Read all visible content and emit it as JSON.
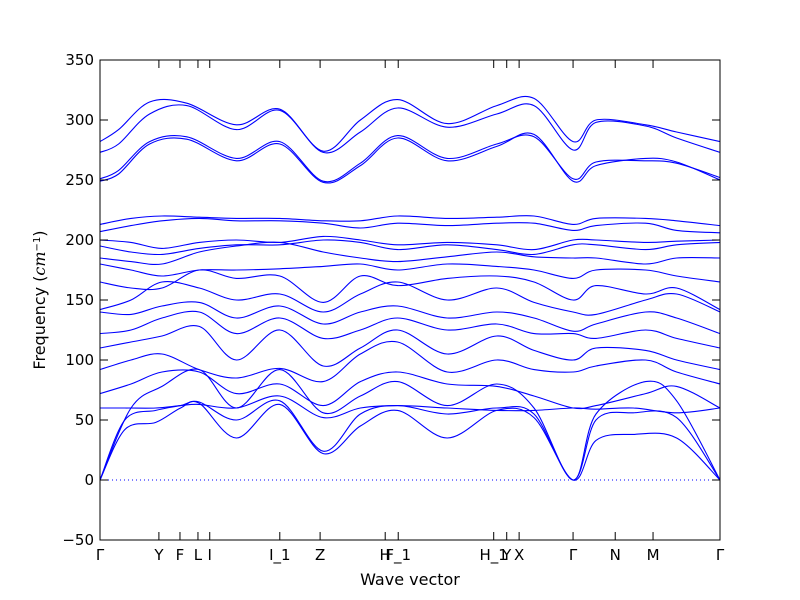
{
  "chart_data": {
    "type": "line",
    "xlabel": "Wave vector",
    "ylabel_main": "Frequency (",
    "ylabel_unit": "cm",
    "ylabel_exp": "−1",
    "ylabel_close": ")",
    "ylim": [
      -50,
      350
    ],
    "yticks": [
      -50,
      0,
      50,
      100,
      150,
      200,
      250,
      300,
      350
    ],
    "xlim": [
      0,
      1
    ],
    "high_symmetry_points": [
      {
        "label": "Γ",
        "x": 0.0
      },
      {
        "label": "Y",
        "x": 0.095
      },
      {
        "label": "F",
        "x": 0.129
      },
      {
        "label": "L",
        "x": 0.158
      },
      {
        "label": "I",
        "x": 0.177
      },
      {
        "label": "I_1",
        "x": 0.29
      },
      {
        "label": "Z",
        "x": 0.355
      },
      {
        "label": "H",
        "x": 0.46
      },
      {
        "label": "F_1",
        "x": 0.481
      },
      {
        "label": "H_1",
        "x": 0.635
      },
      {
        "label": "Y",
        "x": 0.656
      },
      {
        "label": "X",
        "x": 0.676
      },
      {
        "label": "Γ",
        "x": 0.763
      },
      {
        "label": "N",
        "x": 0.831
      },
      {
        "label": "M",
        "x": 0.892
      },
      {
        "label": "Γ",
        "x": 1.0
      }
    ],
    "zero_line": 0,
    "band_color": "#0000ff",
    "zero_line_color": "#0000ff",
    "series": [
      {
        "x": [
          0,
          0.04,
          0.09,
          0.13,
          0.16,
          0.22,
          0.29,
          0.36,
          0.42,
          0.48,
          0.56,
          0.64,
          0.7,
          0.763,
          0.8,
          0.86,
          0.93,
          1.0
        ],
        "y": [
          0,
          42,
          48,
          60,
          64,
          35,
          63,
          22,
          45,
          58,
          35,
          58,
          52,
          0,
          33,
          38,
          35,
          0
        ]
      },
      {
        "x": [
          0,
          0.04,
          0.09,
          0.13,
          0.16,
          0.22,
          0.29,
          0.36,
          0.42,
          0.48,
          0.56,
          0.64,
          0.7,
          0.763,
          0.8,
          0.86,
          0.93,
          1.0
        ],
        "y": [
          0,
          50,
          58,
          62,
          65,
          50,
          66,
          24,
          55,
          62,
          55,
          60,
          55,
          0,
          50,
          56,
          52,
          0
        ]
      },
      {
        "x": [
          0,
          0.04,
          0.09,
          0.13,
          0.16,
          0.22,
          0.29,
          0.36,
          0.42,
          0.48,
          0.56,
          0.64,
          0.7,
          0.763,
          0.8,
          0.86,
          0.93,
          1.0
        ],
        "y": [
          60,
          60,
          60,
          62,
          63,
          60,
          70,
          52,
          60,
          62,
          60,
          58,
          58,
          60,
          59,
          60,
          56,
          60
        ]
      },
      {
        "x": [
          0,
          0.05,
          0.1,
          0.16,
          0.22,
          0.29,
          0.36,
          0.42,
          0.48,
          0.56,
          0.64,
          0.7,
          0.763,
          0.8,
          0.88,
          0.93,
          1.0
        ],
        "y": [
          0,
          60,
          78,
          92,
          60,
          92,
          56,
          70,
          82,
          62,
          80,
          60,
          0,
          55,
          82,
          66,
          0
        ]
      },
      {
        "x": [
          0,
          0.05,
          0.1,
          0.16,
          0.22,
          0.29,
          0.36,
          0.42,
          0.48,
          0.56,
          0.64,
          0.7,
          0.763,
          0.8,
          0.88,
          0.93,
          1.0
        ],
        "y": [
          72,
          80,
          90,
          90,
          72,
          80,
          62,
          82,
          90,
          80,
          78,
          70,
          60,
          62,
          72,
          78,
          60
        ]
      },
      {
        "x": [
          0,
          0.05,
          0.1,
          0.16,
          0.22,
          0.29,
          0.36,
          0.42,
          0.48,
          0.56,
          0.64,
          0.7,
          0.763,
          0.8,
          0.88,
          0.93,
          1.0
        ],
        "y": [
          92,
          100,
          105,
          92,
          85,
          93,
          82,
          105,
          115,
          90,
          100,
          92,
          90,
          95,
          100,
          90,
          80
        ]
      },
      {
        "x": [
          0,
          0.05,
          0.1,
          0.16,
          0.22,
          0.29,
          0.36,
          0.42,
          0.48,
          0.56,
          0.64,
          0.7,
          0.763,
          0.8,
          0.88,
          0.93,
          1.0
        ],
        "y": [
          110,
          115,
          120,
          128,
          100,
          125,
          95,
          110,
          125,
          105,
          120,
          108,
          100,
          110,
          108,
          100,
          92
        ]
      },
      {
        "x": [
          0,
          0.05,
          0.1,
          0.16,
          0.22,
          0.29,
          0.36,
          0.42,
          0.48,
          0.56,
          0.64,
          0.7,
          0.763,
          0.8,
          0.88,
          0.93,
          1.0
        ],
        "y": [
          122,
          125,
          135,
          140,
          122,
          135,
          118,
          125,
          135,
          125,
          130,
          122,
          122,
          118,
          125,
          118,
          110
        ]
      },
      {
        "x": [
          0,
          0.05,
          0.1,
          0.16,
          0.22,
          0.29,
          0.36,
          0.42,
          0.48,
          0.56,
          0.64,
          0.7,
          0.763,
          0.8,
          0.88,
          0.93,
          1.0
        ],
        "y": [
          140,
          138,
          145,
          148,
          135,
          145,
          130,
          140,
          145,
          135,
          140,
          135,
          124,
          130,
          140,
          135,
          122
        ]
      },
      {
        "x": [
          0,
          0.05,
          0.1,
          0.16,
          0.22,
          0.29,
          0.36,
          0.42,
          0.48,
          0.56,
          0.64,
          0.7,
          0.763,
          0.8,
          0.88,
          0.93,
          1.0
        ],
        "y": [
          142,
          150,
          165,
          160,
          150,
          155,
          140,
          155,
          165,
          150,
          160,
          148,
          140,
          138,
          150,
          155,
          140
        ]
      },
      {
        "x": [
          0,
          0.05,
          0.1,
          0.16,
          0.22,
          0.29,
          0.36,
          0.42,
          0.48,
          0.56,
          0.64,
          0.7,
          0.763,
          0.8,
          0.88,
          0.93,
          1.0
        ],
        "y": [
          165,
          160,
          160,
          175,
          168,
          170,
          148,
          170,
          162,
          168,
          170,
          165,
          150,
          162,
          155,
          160,
          142
        ]
      },
      {
        "x": [
          0,
          0.05,
          0.1,
          0.16,
          0.22,
          0.29,
          0.36,
          0.42,
          0.48,
          0.56,
          0.64,
          0.7,
          0.763,
          0.8,
          0.88,
          0.93,
          1.0
        ],
        "y": [
          180,
          175,
          170,
          175,
          175,
          176,
          178,
          180,
          175,
          180,
          178,
          175,
          168,
          175,
          175,
          170,
          165
        ]
      },
      {
        "x": [
          0,
          0.05,
          0.1,
          0.16,
          0.22,
          0.29,
          0.36,
          0.42,
          0.48,
          0.56,
          0.64,
          0.7,
          0.763,
          0.8,
          0.88,
          0.93,
          1.0
        ],
        "y": [
          185,
          182,
          180,
          190,
          195,
          198,
          190,
          185,
          182,
          186,
          190,
          186,
          185,
          185,
          180,
          185,
          185
        ]
      },
      {
        "x": [
          0,
          0.05,
          0.1,
          0.16,
          0.22,
          0.29,
          0.36,
          0.42,
          0.48,
          0.56,
          0.64,
          0.7,
          0.763,
          0.8,
          0.88,
          0.93,
          1.0
        ],
        "y": [
          195,
          190,
          188,
          193,
          196,
          196,
          200,
          198,
          192,
          196,
          192,
          188,
          196,
          196,
          192,
          196,
          198
        ]
      },
      {
        "x": [
          0,
          0.05,
          0.1,
          0.16,
          0.22,
          0.29,
          0.36,
          0.42,
          0.48,
          0.56,
          0.64,
          0.7,
          0.763,
          0.8,
          0.88,
          0.93,
          1.0
        ],
        "y": [
          200,
          198,
          193,
          198,
          200,
          198,
          203,
          200,
          196,
          198,
          196,
          192,
          200,
          200,
          198,
          199,
          200
        ]
      },
      {
        "x": [
          0,
          0.05,
          0.1,
          0.16,
          0.22,
          0.29,
          0.36,
          0.42,
          0.48,
          0.56,
          0.64,
          0.7,
          0.763,
          0.8,
          0.88,
          0.93,
          1.0
        ],
        "y": [
          207,
          212,
          216,
          218,
          216,
          216,
          214,
          210,
          214,
          212,
          214,
          214,
          208,
          212,
          214,
          208,
          206
        ]
      },
      {
        "x": [
          0,
          0.05,
          0.1,
          0.16,
          0.22,
          0.29,
          0.36,
          0.42,
          0.48,
          0.56,
          0.64,
          0.7,
          0.763,
          0.8,
          0.88,
          0.93,
          1.0
        ],
        "y": [
          213,
          218,
          220,
          219,
          218,
          218,
          216,
          216,
          220,
          218,
          219,
          220,
          213,
          218,
          218,
          216,
          212
        ]
      },
      {
        "x": [
          0,
          0.03,
          0.08,
          0.14,
          0.22,
          0.29,
          0.36,
          0.42,
          0.48,
          0.56,
          0.64,
          0.7,
          0.763,
          0.8,
          0.88,
          0.93,
          1.0
        ],
        "y": [
          249,
          255,
          280,
          284,
          266,
          280,
          248,
          262,
          285,
          266,
          278,
          288,
          249,
          262,
          268,
          265,
          250
        ]
      },
      {
        "x": [
          0,
          0.03,
          0.08,
          0.14,
          0.22,
          0.29,
          0.36,
          0.42,
          0.48,
          0.56,
          0.64,
          0.7,
          0.763,
          0.8,
          0.88,
          0.93,
          1.0
        ],
        "y": [
          251,
          258,
          282,
          286,
          268,
          282,
          249,
          264,
          287,
          268,
          280,
          286,
          251,
          265,
          266,
          264,
          252
        ]
      },
      {
        "x": [
          0,
          0.03,
          0.08,
          0.14,
          0.22,
          0.29,
          0.36,
          0.42,
          0.48,
          0.56,
          0.64,
          0.7,
          0.763,
          0.8,
          0.88,
          0.93,
          1.0
        ],
        "y": [
          273,
          280,
          305,
          312,
          292,
          308,
          273,
          290,
          310,
          294,
          305,
          312,
          275,
          298,
          295,
          285,
          273
        ]
      },
      {
        "x": [
          0,
          0.03,
          0.08,
          0.14,
          0.22,
          0.29,
          0.36,
          0.42,
          0.48,
          0.56,
          0.64,
          0.7,
          0.763,
          0.8,
          0.88,
          0.93,
          1.0
        ],
        "y": [
          282,
          292,
          315,
          314,
          296,
          309,
          274,
          300,
          317,
          297,
          312,
          318,
          282,
          300,
          296,
          290,
          282
        ]
      }
    ]
  }
}
